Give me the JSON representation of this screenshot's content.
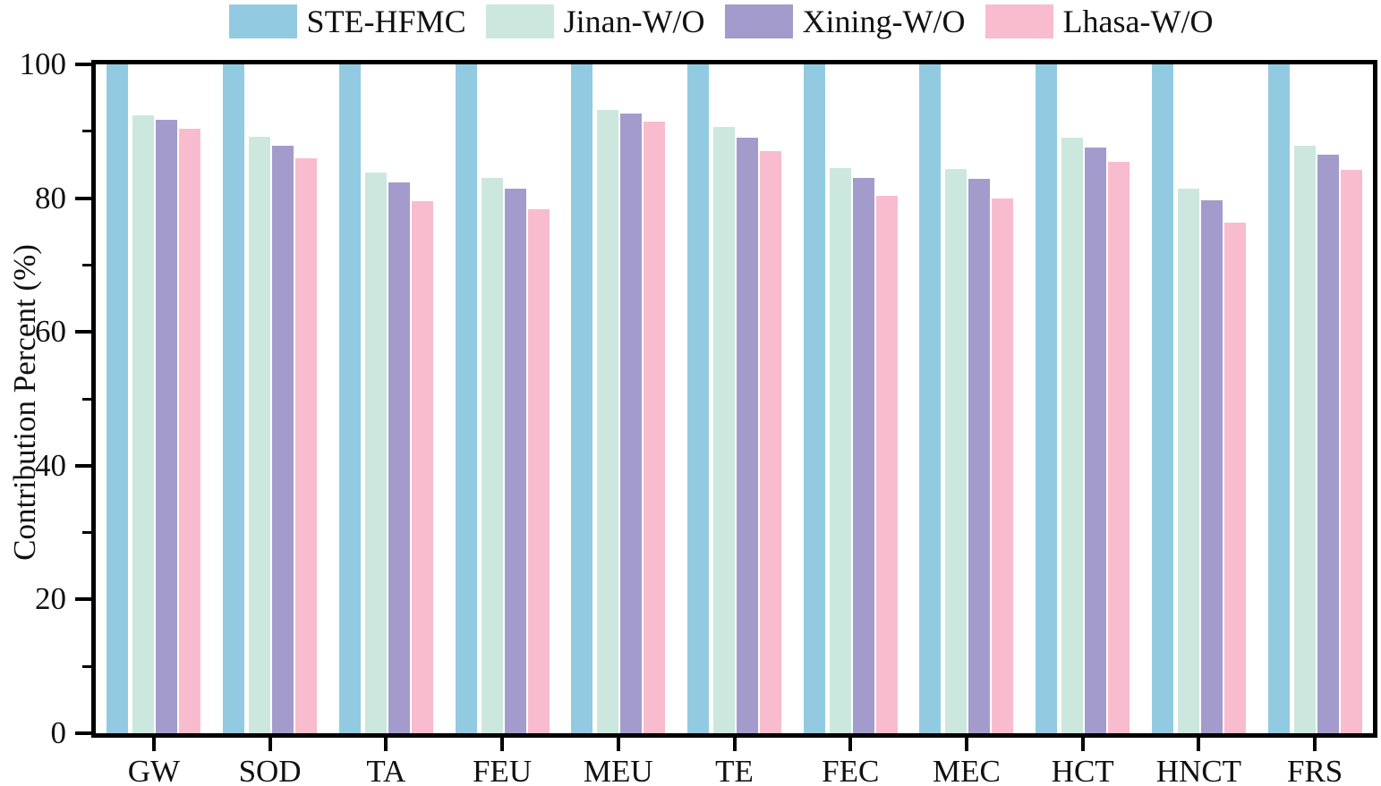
{
  "chart_data": {
    "type": "bar",
    "title": "",
    "xlabel": "",
    "ylabel": "Contribution Percent (%)",
    "ylim": [
      0,
      100
    ],
    "yticks_major": [
      0,
      20,
      40,
      60,
      80,
      100
    ],
    "yticks_minor": [
      10,
      30,
      50,
      70,
      90
    ],
    "grid": false,
    "legend_position": "top-center-horizontal",
    "axis_color": "#000000",
    "background_color": "#ffffff",
    "categories": [
      "GW",
      "SOD",
      "TA",
      "FEU",
      "MEU",
      "TE",
      "FEC",
      "MEC",
      "HCT",
      "HNCT",
      "FRS"
    ],
    "series": [
      {
        "name": "STE-HFMC",
        "color": "#92CBE1",
        "values": [
          100,
          100,
          100,
          100,
          100,
          100,
          100,
          100,
          100,
          100,
          100
        ]
      },
      {
        "name": "Jinan-W/O",
        "color": "#CCE7DE",
        "values": [
          92.4,
          89.2,
          83.8,
          83.0,
          93.2,
          90.7,
          84.5,
          84.4,
          89.0,
          81.4,
          87.8
        ]
      },
      {
        "name": "Xining-W/O",
        "color": "#A39BCB",
        "values": [
          91.7,
          87.9,
          82.3,
          81.4,
          92.6,
          89.1,
          83.0,
          82.9,
          87.6,
          79.7,
          86.5
        ]
      },
      {
        "name": "Lhasa-W/O",
        "color": "#F8BCCE",
        "values": [
          90.4,
          85.9,
          79.5,
          78.4,
          91.4,
          87.1,
          80.3,
          80.0,
          85.4,
          76.4,
          84.2
        ]
      }
    ]
  }
}
